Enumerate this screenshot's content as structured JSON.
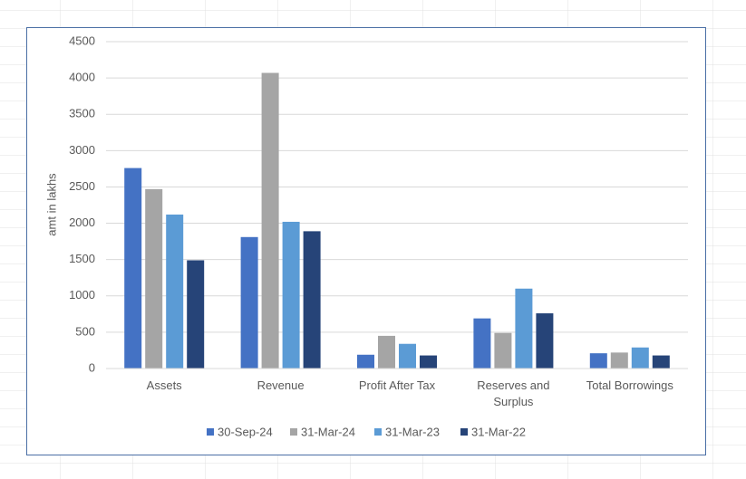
{
  "chart_data": {
    "type": "bar",
    "y_label": "amt in lakhs",
    "categories": [
      "Assets",
      "Revenue",
      "Profit After Tax",
      "Reserves and Surplus",
      "Total Borrowings"
    ],
    "series": [
      {
        "name": "30-Sep-24",
        "color": "#4472c4",
        "values": [
          2760,
          1810,
          190,
          690,
          210
        ]
      },
      {
        "name": "31-Mar-24",
        "color": "#a5a5a5",
        "values": [
          2470,
          4070,
          450,
          490,
          220
        ]
      },
      {
        "name": "31-Mar-23",
        "color": "#5b9bd5",
        "values": [
          2120,
          2020,
          340,
          1100,
          290
        ]
      },
      {
        "name": "31-Mar-22",
        "color": "#264478",
        "values": [
          1490,
          1890,
          180,
          760,
          180
        ]
      }
    ],
    "ylim": [
      0,
      4500
    ],
    "yticks": [
      0,
      500,
      1000,
      1500,
      2000,
      2500,
      3000,
      3500,
      4000,
      4500
    ],
    "grid": true,
    "legend": "bottom"
  }
}
